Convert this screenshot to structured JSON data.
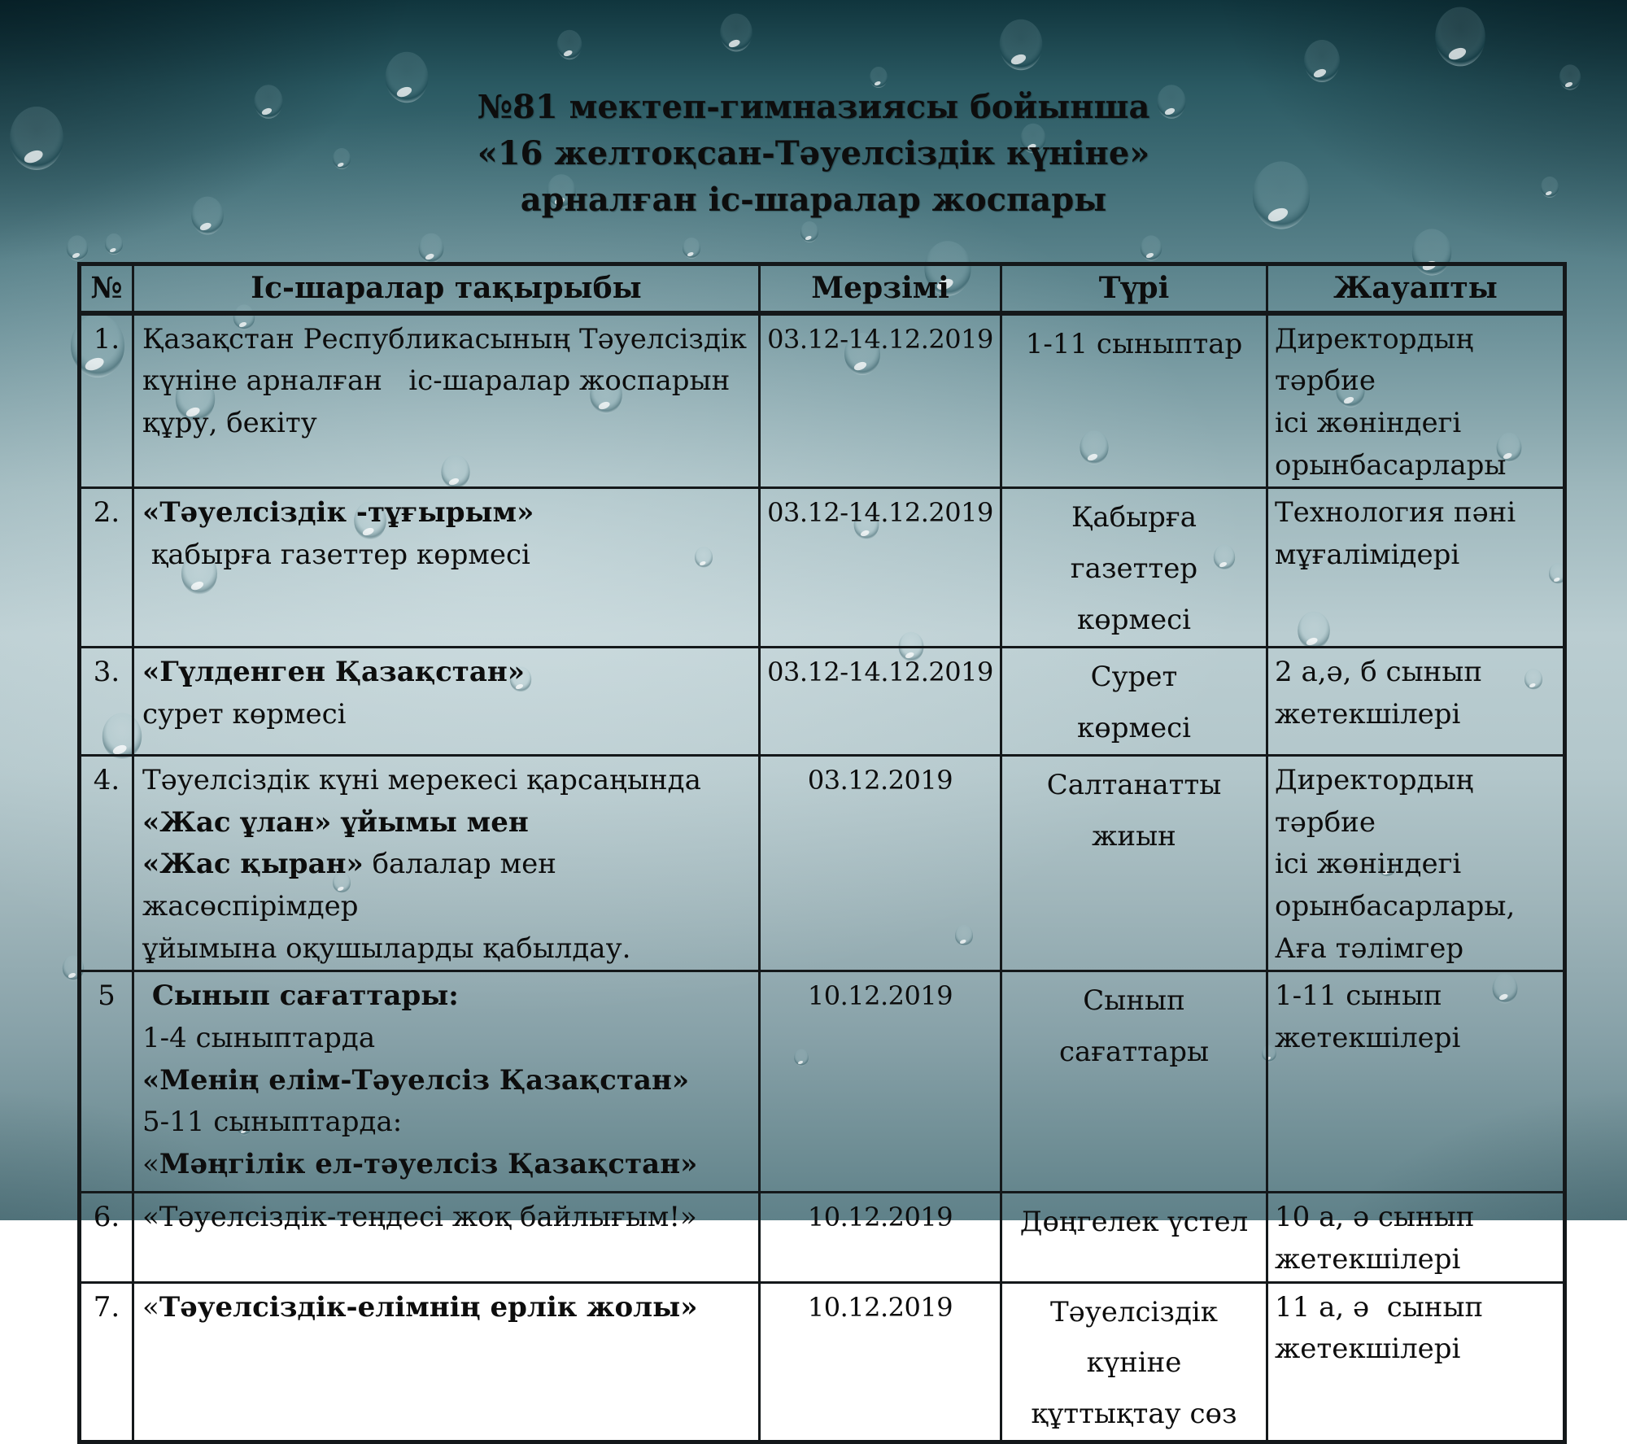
{
  "slide": {
    "title_lines": [
      "№81 мектеп-гимназиясы бойынша",
      "«16 желтоқсан-Тәуелсіздік күніне»",
      "арналған іс-шаралар жоспары"
    ]
  },
  "colors": {
    "text": "#0d0d0d",
    "table_border": "#14181a",
    "background_top": "#10353d",
    "background_middle": "#bacdd1",
    "background_bottom": "#5f8189"
  },
  "table": {
    "headers": [
      "№",
      "Іс-шаралар тақырыбы",
      "Мерзімі",
      "Түрі",
      "Жауапты"
    ],
    "rows": [
      {
        "num": "1.",
        "topic": [
          [
            {
              "t": "Қазақстан Республикасының Тәуелсіздік"
            }
          ],
          [
            {
              "t": "күніне арналған   іс-шаралар жоспарын"
            }
          ],
          [
            {
              "t": "құру, бекіту"
            }
          ]
        ],
        "date": "03.12-14.12.2019",
        "type": [
          "1-11 сыныптар"
        ],
        "responsible": [
          "Директордың тәрбие",
          "ісі жөніндегі",
          "орынбасарлары"
        ]
      },
      {
        "num": "2.",
        "topic": [
          [
            {
              "t": "«Тәуелсіздік -тұғырым»",
              "b": true
            }
          ],
          [
            {
              "t": " қабырға газеттер көрмесі"
            }
          ]
        ],
        "date": "03.12-14.12.2019",
        "type": [
          "Қабырға газеттер",
          "көрмесі"
        ],
        "responsible": [
          "Технология пәні",
          "мұғалімідері"
        ]
      },
      {
        "num": "3.",
        "topic": [
          [
            {
              "t": "«Гүлденген Қазақстан»",
              "b": true
            }
          ],
          [
            {
              "t": "сурет көрмесі"
            }
          ]
        ],
        "date": "03.12-14.12.2019",
        "type": [
          "Сурет",
          "көрмесі"
        ],
        "responsible": [
          "2 а,ә, б сынып",
          "жетекшілері"
        ]
      },
      {
        "num": "4.",
        "topic": [
          [
            {
              "t": "Тәуелсіздік күні мерекесі қарсаңында"
            }
          ],
          [
            {
              "t": "«Жас ұлан» ұйымы мен",
              "b": true
            }
          ],
          [
            {
              "t": "«Жас қыран»",
              "b": true
            },
            {
              "t": " балалар мен жасөспірімдер"
            }
          ],
          [
            {
              "t": "ұйымына оқушыларды қабылдау."
            }
          ]
        ],
        "date": "03.12.2019",
        "type": [
          "Салтанатты жиын"
        ],
        "responsible": [
          "Директордың тәрбие",
          "ісі жөніндегі",
          "орынбасарлары,",
          "Аға тәлімгер"
        ]
      },
      {
        "num": "5",
        "topic": [
          [
            {
              "t": " Сынып сағаттары:",
              "b": true
            }
          ],
          [
            {
              "t": "1-4 сыныптарда"
            }
          ],
          [
            {
              "t": "«Менің елім-Тәуелсіз Қазақстан»",
              "b": true
            }
          ],
          [
            {
              "t": "5-11 сыныптарда:"
            }
          ],
          [
            {
              "t": "«"
            },
            {
              "t": "Мәңгілік ел-тәуелсіз Қазақстан»",
              "b": true
            }
          ]
        ],
        "date": "10.12.2019",
        "type": [
          "Сынып сағаттары"
        ],
        "responsible": [
          "1-11 сынып",
          "жетекшілері"
        ]
      },
      {
        "num": "6.",
        "topic": [
          [
            {
              "t": "«Тәуелсіздік-теңдесі жоқ байлығым!»"
            }
          ]
        ],
        "date": "10.12.2019",
        "type": [
          "Дөңгелек үстел"
        ],
        "responsible": [
          "10 а, ә сынып",
          "жетекшілері"
        ]
      },
      {
        "num": "7.",
        "topic": [
          [
            {
              "t": "«"
            },
            {
              "t": "Тәуелсіздік-елімнің ерлік жолы»",
              "b": true
            }
          ]
        ],
        "date": "10.12.2019",
        "type": [
          "Тәуелсіздік күніне",
          "құттықтау сөз"
        ],
        "responsible": [
          "11 а, ә  сынып",
          "жетекшілері"
        ]
      }
    ]
  }
}
